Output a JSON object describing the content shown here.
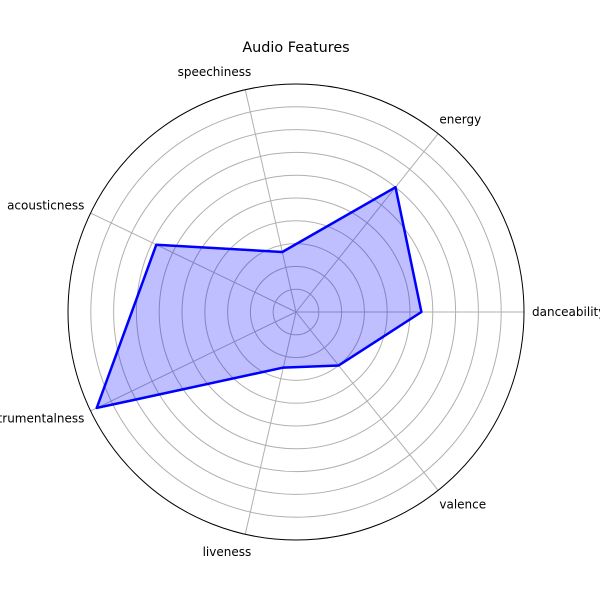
{
  "chart_data": {
    "type": "radar",
    "title": "Audio Features",
    "categories": [
      "danceability",
      "energy",
      "speechiness",
      "acousticness",
      "instrumentalness",
      "liveness",
      "valence"
    ],
    "series": [
      {
        "values": [
          0.55,
          0.7,
          0.27,
          0.68,
          0.97,
          0.25,
          0.3
        ],
        "line_color": "#0000ff",
        "fill_color": "#0000ff",
        "fill_alpha": 0.25
      }
    ],
    "rlim": [
      0,
      1
    ],
    "radial_gridlines": [
      0.1,
      0.2,
      0.3,
      0.4,
      0.5,
      0.6,
      0.7,
      0.8,
      0.9,
      1.0
    ],
    "radial_tick_labels": false,
    "grid": true,
    "grid_color": "#b0b0b0"
  }
}
